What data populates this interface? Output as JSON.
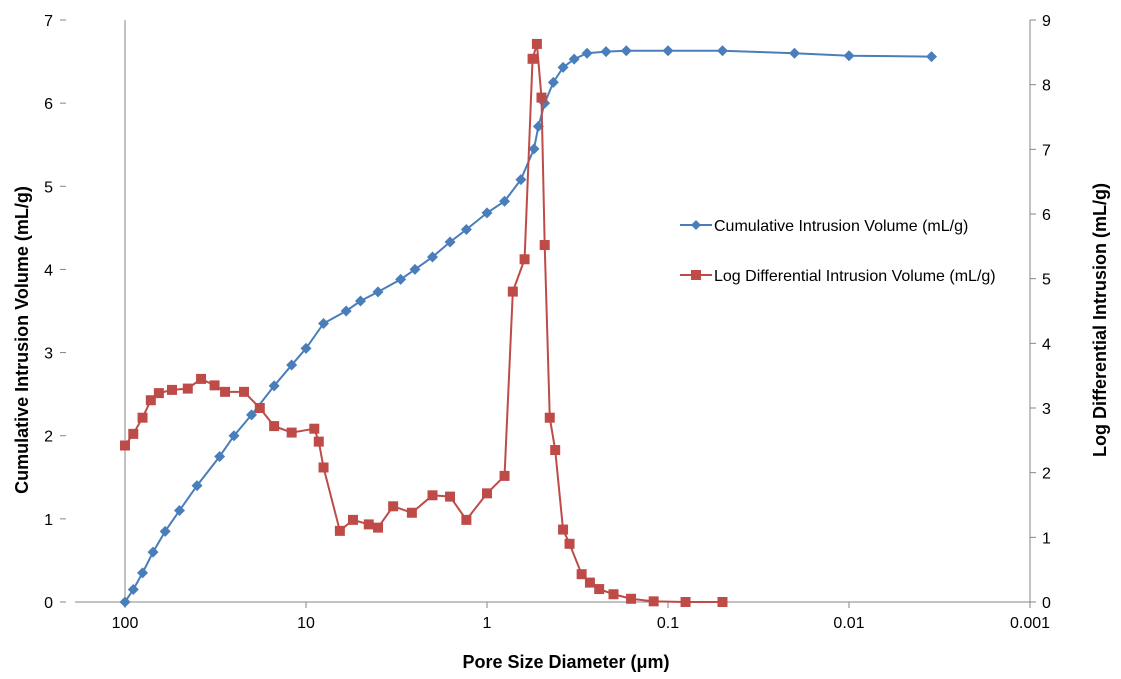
{
  "chart_data": {
    "type": "line",
    "xlabel": "Pore Size Diameter (μm)",
    "ylabel_left": "Cumulative Intrusion Volume (mL/g)",
    "ylabel_right": "Log Differential Intrusion (mL/g)",
    "x_scale": "log",
    "x_reversed": true,
    "xlim": [
      100,
      0.001
    ],
    "x_ticks": [
      100,
      10,
      1,
      0.1,
      0.01,
      0.001
    ],
    "x_tick_labels": [
      "100",
      "10",
      "1",
      "0.1",
      "0.01",
      "0.001"
    ],
    "ylim_left": [
      0,
      7
    ],
    "y_ticks_left": [
      "0",
      "1",
      "2",
      "3",
      "4",
      "5",
      "6",
      "7"
    ],
    "ylim_right": [
      0,
      9
    ],
    "y_ticks_right": [
      "0",
      "1",
      "2",
      "3",
      "4",
      "5",
      "6",
      "7",
      "8",
      "9"
    ],
    "grid": false,
    "legend_position": "right",
    "series": [
      {
        "name": "Cumulative Intrusion Volume (mL/g)",
        "axis": "left",
        "color": "#4a7ebb",
        "marker": "diamond",
        "points": [
          [
            100,
            0
          ],
          [
            90,
            0.15
          ],
          [
            80,
            0.35
          ],
          [
            70,
            0.6
          ],
          [
            60,
            0.85
          ],
          [
            50,
            1.1
          ],
          [
            40,
            1.4
          ],
          [
            30,
            1.75
          ],
          [
            25,
            2.0
          ],
          [
            20,
            2.25
          ],
          [
            15,
            2.6
          ],
          [
            12,
            2.85
          ],
          [
            10,
            3.05
          ],
          [
            8,
            3.35
          ],
          [
            6,
            3.5
          ],
          [
            5,
            3.62
          ],
          [
            4,
            3.73
          ],
          [
            3,
            3.88
          ],
          [
            2.5,
            4.0
          ],
          [
            2,
            4.15
          ],
          [
            1.6,
            4.33
          ],
          [
            1.3,
            4.48
          ],
          [
            1,
            4.68
          ],
          [
            0.8,
            4.82
          ],
          [
            0.65,
            5.08
          ],
          [
            0.55,
            5.45
          ],
          [
            0.52,
            5.72
          ],
          [
            0.48,
            6.0
          ],
          [
            0.43,
            6.25
          ],
          [
            0.38,
            6.43
          ],
          [
            0.33,
            6.53
          ],
          [
            0.28,
            6.6
          ],
          [
            0.22,
            6.62
          ],
          [
            0.17,
            6.63
          ],
          [
            0.1,
            6.63
          ],
          [
            0.05,
            6.63
          ],
          [
            0.02,
            6.6
          ],
          [
            0.01,
            6.57
          ],
          [
            0.0035,
            6.56
          ]
        ]
      },
      {
        "name": "Log Differential Intrusion Volume (mL/g)",
        "axis": "right",
        "color": "#be4b48",
        "marker": "square",
        "points": [
          [
            100,
            2.42
          ],
          [
            90,
            2.6
          ],
          [
            80,
            2.85
          ],
          [
            72,
            3.12
          ],
          [
            65,
            3.23
          ],
          [
            55,
            3.28
          ],
          [
            45,
            3.3
          ],
          [
            38,
            3.45
          ],
          [
            32,
            3.35
          ],
          [
            28,
            3.25
          ],
          [
            22,
            3.25
          ],
          [
            18,
            3.0
          ],
          [
            15,
            2.72
          ],
          [
            12,
            2.62
          ],
          [
            9,
            2.68
          ],
          [
            8.5,
            2.48
          ],
          [
            8,
            2.08
          ],
          [
            6.5,
            1.1
          ],
          [
            5.5,
            1.27
          ],
          [
            4.5,
            1.2
          ],
          [
            4,
            1.15
          ],
          [
            3.3,
            1.48
          ],
          [
            2.6,
            1.38
          ],
          [
            2,
            1.65
          ],
          [
            1.6,
            1.63
          ],
          [
            1.3,
            1.27
          ],
          [
            1,
            1.68
          ],
          [
            0.8,
            1.95
          ],
          [
            0.72,
            4.8
          ],
          [
            0.62,
            5.3
          ],
          [
            0.56,
            8.4
          ],
          [
            0.53,
            8.63
          ],
          [
            0.5,
            7.8
          ],
          [
            0.48,
            5.52
          ],
          [
            0.45,
            2.85
          ],
          [
            0.42,
            2.35
          ],
          [
            0.38,
            1.12
          ],
          [
            0.35,
            0.9
          ],
          [
            0.3,
            0.43
          ],
          [
            0.27,
            0.3
          ],
          [
            0.24,
            0.2
          ],
          [
            0.2,
            0.12
          ],
          [
            0.16,
            0.05
          ],
          [
            0.12,
            0.01
          ],
          [
            0.08,
            0.0
          ],
          [
            0.05,
            0.0
          ]
        ]
      }
    ]
  }
}
